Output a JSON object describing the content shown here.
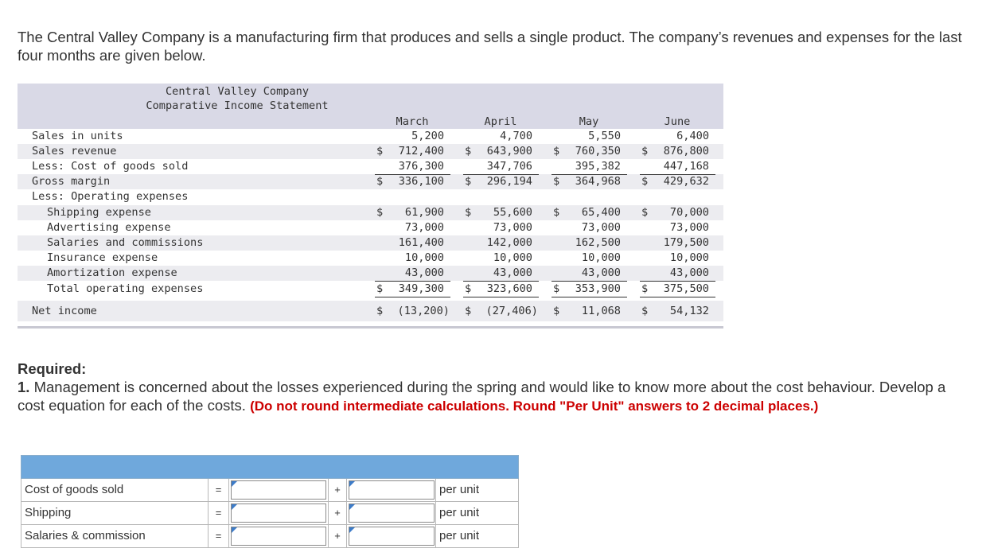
{
  "intro": "The Central Valley Company is a manufacturing firm that produces and sells a single product. The company’s revenues and expenses for the last four months are given below.",
  "statement": {
    "company": "Central Valley Company",
    "title": "Comparative Income Statement",
    "months": [
      "March",
      "April",
      "May",
      "June"
    ],
    "rows": [
      {
        "label": "Sales in units",
        "indent": 0,
        "values": [
          "5,200",
          "4,700",
          "5,550",
          "6,400"
        ],
        "dollar": false
      },
      {
        "label": "Sales revenue",
        "indent": 0,
        "values": [
          "712,400",
          "643,900",
          "760,350",
          "876,800"
        ],
        "dollar": true
      },
      {
        "label": "Less: Cost of goods sold",
        "indent": 0,
        "values": [
          "376,300",
          "347,706",
          "395,382",
          "447,168"
        ],
        "dollar": false
      },
      {
        "label": "Gross margin",
        "indent": 0,
        "values": [
          "336,100",
          "296,194",
          "364,968",
          "429,632"
        ],
        "dollar": true
      },
      {
        "label": "Less: Operating expenses",
        "indent": 0,
        "values": [
          "",
          "",
          "",
          ""
        ],
        "dollar": false
      },
      {
        "label": "Shipping expense",
        "indent": 1,
        "values": [
          "61,900",
          "55,600",
          "65,400",
          "70,000"
        ],
        "dollar": true
      },
      {
        "label": "Advertising expense",
        "indent": 1,
        "values": [
          "73,000",
          "73,000",
          "73,000",
          "73,000"
        ],
        "dollar": false
      },
      {
        "label": "Salaries and commissions",
        "indent": 1,
        "values": [
          "161,400",
          "142,000",
          "162,500",
          "179,500"
        ],
        "dollar": false
      },
      {
        "label": "Insurance expense",
        "indent": 1,
        "values": [
          "10,000",
          "10,000",
          "10,000",
          "10,000"
        ],
        "dollar": false
      },
      {
        "label": "Amortization expense",
        "indent": 1,
        "values": [
          "43,000",
          "43,000",
          "43,000",
          "43,000"
        ],
        "dollar": false
      },
      {
        "label": "Total operating expenses",
        "indent": 1,
        "values": [
          "349,300",
          "323,600",
          "353,900",
          "375,500"
        ],
        "dollar": true
      },
      {
        "label": "Net income",
        "indent": 0,
        "values": [
          "(13,200)",
          "(27,406)",
          "11,068",
          "54,132"
        ],
        "dollar": true
      }
    ]
  },
  "required": {
    "heading": "Required:",
    "number": "1.",
    "text": " Management is concerned about the losses experienced during the spring and would like to know more about the cost behaviour. Develop a cost equation for each of the costs.",
    "instruction": "(Do not round intermediate calculations. Round \"Per Unit\" answers to 2 decimal places.)"
  },
  "answer_rows": [
    {
      "label": "Cost of goods sold",
      "eq": "=",
      "plus": "+",
      "unit": "per unit",
      "fixed": "",
      "variable": ""
    },
    {
      "label": "Shipping",
      "eq": "=",
      "plus": "+",
      "unit": "per unit",
      "fixed": "",
      "variable": ""
    },
    {
      "label": "Salaries & commission",
      "eq": "=",
      "plus": "+",
      "unit": "per unit",
      "fixed": "",
      "variable": ""
    }
  ],
  "dollar_sign": "$"
}
